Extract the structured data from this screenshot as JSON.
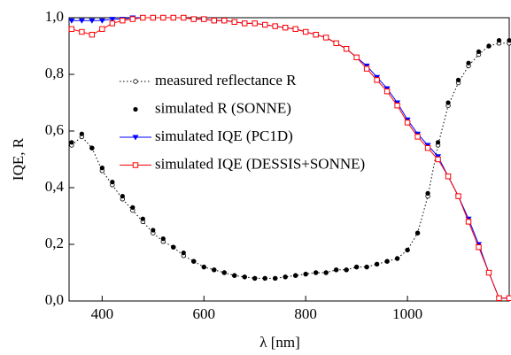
{
  "chart_data": {
    "type": "line",
    "x_label": "λ [nm]",
    "y_label": "IQE, R",
    "x": [
      340,
      360,
      380,
      400,
      420,
      440,
      460,
      480,
      500,
      520,
      540,
      560,
      580,
      600,
      620,
      640,
      660,
      680,
      700,
      720,
      740,
      760,
      780,
      800,
      820,
      840,
      860,
      880,
      900,
      920,
      940,
      960,
      980,
      1000,
      1020,
      1040,
      1060,
      1080,
      1100,
      1120,
      1140,
      1160,
      1180,
      1200
    ],
    "xlim": [
      335,
      1200
    ],
    "xticks": [
      400,
      600,
      800,
      1000
    ],
    "ylim": [
      0,
      1
    ],
    "yticks": [
      {
        "value": 0,
        "label": "0,0"
      },
      {
        "value": 0.2,
        "label": "0,2"
      },
      {
        "value": 0.4,
        "label": "0,4"
      },
      {
        "value": 0.6,
        "label": "0,6"
      },
      {
        "value": 0.8,
        "label": "0,8"
      },
      {
        "value": 1,
        "label": "1,0"
      }
    ],
    "legend": "upper-left",
    "series": [
      {
        "name": "measured reflectance R",
        "color": "#000000",
        "line_style": "dotted",
        "marker": "open-circle",
        "values": [
          0.55,
          0.58,
          0.54,
          0.46,
          0.41,
          0.36,
          0.32,
          0.28,
          0.24,
          0.21,
          0.19,
          0.16,
          0.14,
          0.12,
          0.11,
          0.1,
          0.09,
          0.085,
          0.08,
          0.08,
          0.08,
          0.085,
          0.09,
          0.095,
          0.1,
          0.1,
          0.11,
          0.11,
          0.12,
          0.12,
          0.13,
          0.14,
          0.15,
          0.18,
          0.24,
          0.37,
          0.55,
          0.69,
          0.77,
          0.83,
          0.87,
          0.9,
          0.91,
          0.91
        ]
      },
      {
        "name": "simulated R (SONNE)",
        "color": "#000000",
        "line_style": "none",
        "marker": "filled-circle",
        "values": [
          0.56,
          0.59,
          0.54,
          0.47,
          0.42,
          0.37,
          0.33,
          0.29,
          0.25,
          0.22,
          0.19,
          0.17,
          0.14,
          0.12,
          0.11,
          0.1,
          0.09,
          0.085,
          0.08,
          0.08,
          0.08,
          0.085,
          0.09,
          0.095,
          0.1,
          0.1,
          0.11,
          0.11,
          0.12,
          0.12,
          0.13,
          0.14,
          0.15,
          0.18,
          0.24,
          0.38,
          0.56,
          0.7,
          0.78,
          0.84,
          0.88,
          0.9,
          0.92,
          0.92
        ]
      },
      {
        "name": "simulated IQE (PC1D)",
        "color": "#0000ff",
        "line_style": "solid",
        "marker": "triangle-down",
        "values": [
          0.99,
          0.99,
          0.99,
          0.99,
          0.995,
          0.995,
          1.0,
          1.0,
          1.0,
          1.0,
          1.0,
          1.0,
          0.995,
          0.995,
          0.99,
          0.99,
          0.985,
          0.98,
          0.98,
          0.975,
          0.97,
          0.965,
          0.96,
          0.95,
          0.94,
          0.93,
          0.91,
          0.89,
          0.86,
          0.83,
          0.79,
          0.75,
          0.7,
          0.64,
          0.59,
          0.55,
          0.51,
          0.44,
          0.37,
          0.29,
          0.2,
          0.1,
          0.01,
          0.01
        ]
      },
      {
        "name": "simulated IQE (DESSIS+SONNE)",
        "color": "#ff0000",
        "line_style": "solid",
        "marker": "open-square",
        "values": [
          0.96,
          0.95,
          0.94,
          0.96,
          0.98,
          0.99,
          0.995,
          1.0,
          1.0,
          1.0,
          1.0,
          1.0,
          0.995,
          0.995,
          0.99,
          0.99,
          0.985,
          0.98,
          0.98,
          0.975,
          0.97,
          0.965,
          0.96,
          0.95,
          0.94,
          0.93,
          0.91,
          0.89,
          0.86,
          0.82,
          0.78,
          0.74,
          0.69,
          0.63,
          0.58,
          0.54,
          0.5,
          0.44,
          0.37,
          0.28,
          0.19,
          0.1,
          0.01,
          0.01
        ]
      }
    ]
  }
}
